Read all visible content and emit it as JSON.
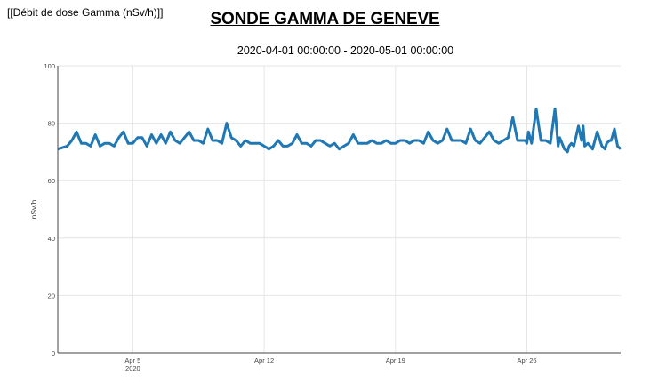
{
  "header": {
    "corner_label": "[[Débit de dose Gamma (nSv/h)]]",
    "title": "SONDE GAMMA DE GENEVE",
    "subtitle": "2020-04-01 00:00:00 - 2020-05-01 00:00:00"
  },
  "chart_data": {
    "type": "line",
    "title": "SONDE GAMMA DE GENEVE",
    "subtitle": "2020-04-01 00:00:00 - 2020-05-01 00:00:00",
    "xlabel": "",
    "ylabel": "nSv/h",
    "xlim": [
      "2020-04-01 00:00",
      "2020-05-01 00:00"
    ],
    "ylim": [
      0,
      100
    ],
    "yticks": [
      0,
      20,
      40,
      60,
      80,
      100
    ],
    "xticks": [
      {
        "date": "2020-04-05",
        "label": "Apr 5",
        "sublabel": "2020"
      },
      {
        "date": "2020-04-12",
        "label": "Apr 12",
        "sublabel": ""
      },
      {
        "date": "2020-04-19",
        "label": "Apr 19",
        "sublabel": ""
      },
      {
        "date": "2020-04-26",
        "label": "Apr 26",
        "sublabel": ""
      }
    ],
    "grid": true,
    "line_color": "#1f77b4",
    "series": [
      {
        "x": [
          "2020-04-01 00:00",
          "2020-04-01 12:00",
          "2020-04-01 18:00",
          "2020-04-02 00:00",
          "2020-04-02 06:00",
          "2020-04-02 12:00",
          "2020-04-02 18:00",
          "2020-04-03 00:00",
          "2020-04-03 06:00",
          "2020-04-03 12:00",
          "2020-04-03 18:00",
          "2020-04-04 00:00",
          "2020-04-04 06:00",
          "2020-04-04 12:00",
          "2020-04-04 18:00",
          "2020-04-05 00:00",
          "2020-04-05 06:00",
          "2020-04-05 12:00",
          "2020-04-05 18:00",
          "2020-04-06 00:00",
          "2020-04-06 06:00",
          "2020-04-06 12:00",
          "2020-04-06 18:00",
          "2020-04-07 00:00",
          "2020-04-07 06:00",
          "2020-04-07 12:00",
          "2020-04-07 18:00",
          "2020-04-08 00:00",
          "2020-04-08 06:00",
          "2020-04-08 12:00",
          "2020-04-08 18:00",
          "2020-04-09 00:00",
          "2020-04-09 06:00",
          "2020-04-09 12:00",
          "2020-04-09 18:00",
          "2020-04-10 00:00",
          "2020-04-10 06:00",
          "2020-04-10 12:00",
          "2020-04-10 18:00",
          "2020-04-11 00:00",
          "2020-04-11 06:00",
          "2020-04-11 12:00",
          "2020-04-11 18:00",
          "2020-04-12 00:00",
          "2020-04-12 06:00",
          "2020-04-12 12:00",
          "2020-04-12 18:00",
          "2020-04-13 00:00",
          "2020-04-13 06:00",
          "2020-04-13 12:00",
          "2020-04-13 18:00",
          "2020-04-14 00:00",
          "2020-04-14 06:00",
          "2020-04-14 12:00",
          "2020-04-14 18:00",
          "2020-04-15 00:00",
          "2020-04-15 06:00",
          "2020-04-15 12:00",
          "2020-04-15 18:00",
          "2020-04-16 00:00",
          "2020-04-16 06:00",
          "2020-04-16 12:00",
          "2020-04-16 18:00",
          "2020-04-17 00:00",
          "2020-04-17 06:00",
          "2020-04-17 12:00",
          "2020-04-17 18:00",
          "2020-04-18 00:00",
          "2020-04-18 06:00",
          "2020-04-18 12:00",
          "2020-04-18 18:00",
          "2020-04-19 00:00",
          "2020-04-19 06:00",
          "2020-04-19 12:00",
          "2020-04-19 18:00",
          "2020-04-20 00:00",
          "2020-04-20 06:00",
          "2020-04-20 12:00",
          "2020-04-20 18:00",
          "2020-04-21 00:00",
          "2020-04-21 06:00",
          "2020-04-21 12:00",
          "2020-04-21 18:00",
          "2020-04-22 00:00",
          "2020-04-22 06:00",
          "2020-04-22 12:00",
          "2020-04-22 18:00",
          "2020-04-23 00:00",
          "2020-04-23 06:00",
          "2020-04-23 12:00",
          "2020-04-23 18:00",
          "2020-04-24 00:00",
          "2020-04-24 06:00",
          "2020-04-24 12:00",
          "2020-04-24 18:00",
          "2020-04-25 00:00",
          "2020-04-25 06:00",
          "2020-04-25 12:00",
          "2020-04-25 18:00",
          "2020-04-25 22:00",
          "2020-04-26 00:00",
          "2020-04-26 02:00",
          "2020-04-26 06:00",
          "2020-04-26 12:00",
          "2020-04-26 18:00",
          "2020-04-27 00:00",
          "2020-04-27 06:00",
          "2020-04-27 12:00",
          "2020-04-27 16:00",
          "2020-04-27 18:00",
          "2020-04-28 00:00",
          "2020-04-28 04:00",
          "2020-04-28 06:00",
          "2020-04-28 09:00",
          "2020-04-28 12:00",
          "2020-04-28 18:00",
          "2020-04-28 22:00",
          "2020-04-29 00:00",
          "2020-04-29 02:00",
          "2020-04-29 06:00",
          "2020-04-29 12:00",
          "2020-04-29 18:00",
          "2020-04-30 00:00",
          "2020-04-30 04:00",
          "2020-04-30 06:00",
          "2020-04-30 10:00",
          "2020-04-30 12:00",
          "2020-04-30 16:00",
          "2020-04-30 20:00",
          "2020-05-01 00:00"
        ],
        "y": [
          71,
          72,
          74,
          77,
          73,
          73,
          72,
          76,
          72,
          73,
          73,
          72,
          75,
          77,
          73,
          73,
          75,
          75,
          72,
          76,
          73,
          76,
          73,
          77,
          74,
          73,
          75,
          77,
          74,
          74,
          73,
          78,
          74,
          74,
          73,
          80,
          75,
          74,
          72,
          74,
          73,
          73,
          73,
          72,
          71,
          72,
          74,
          72,
          72,
          73,
          76,
          73,
          73,
          72,
          74,
          74,
          73,
          72,
          73,
          71,
          72,
          73,
          76,
          73,
          73,
          73,
          74,
          73,
          73,
          74,
          73,
          73,
          74,
          74,
          73,
          74,
          74,
          73,
          77,
          74,
          73,
          74,
          78,
          74,
          74,
          74,
          73,
          78,
          74,
          73,
          75,
          77,
          74,
          73,
          74,
          75,
          82,
          74,
          74,
          74,
          73,
          77,
          73,
          85,
          74,
          74,
          73,
          85,
          72,
          75,
          71,
          70,
          72,
          73,
          72,
          79,
          74,
          79,
          72,
          73,
          71,
          77,
          72,
          71,
          73,
          74,
          74,
          78,
          72,
          71
        ]
      }
    ]
  }
}
